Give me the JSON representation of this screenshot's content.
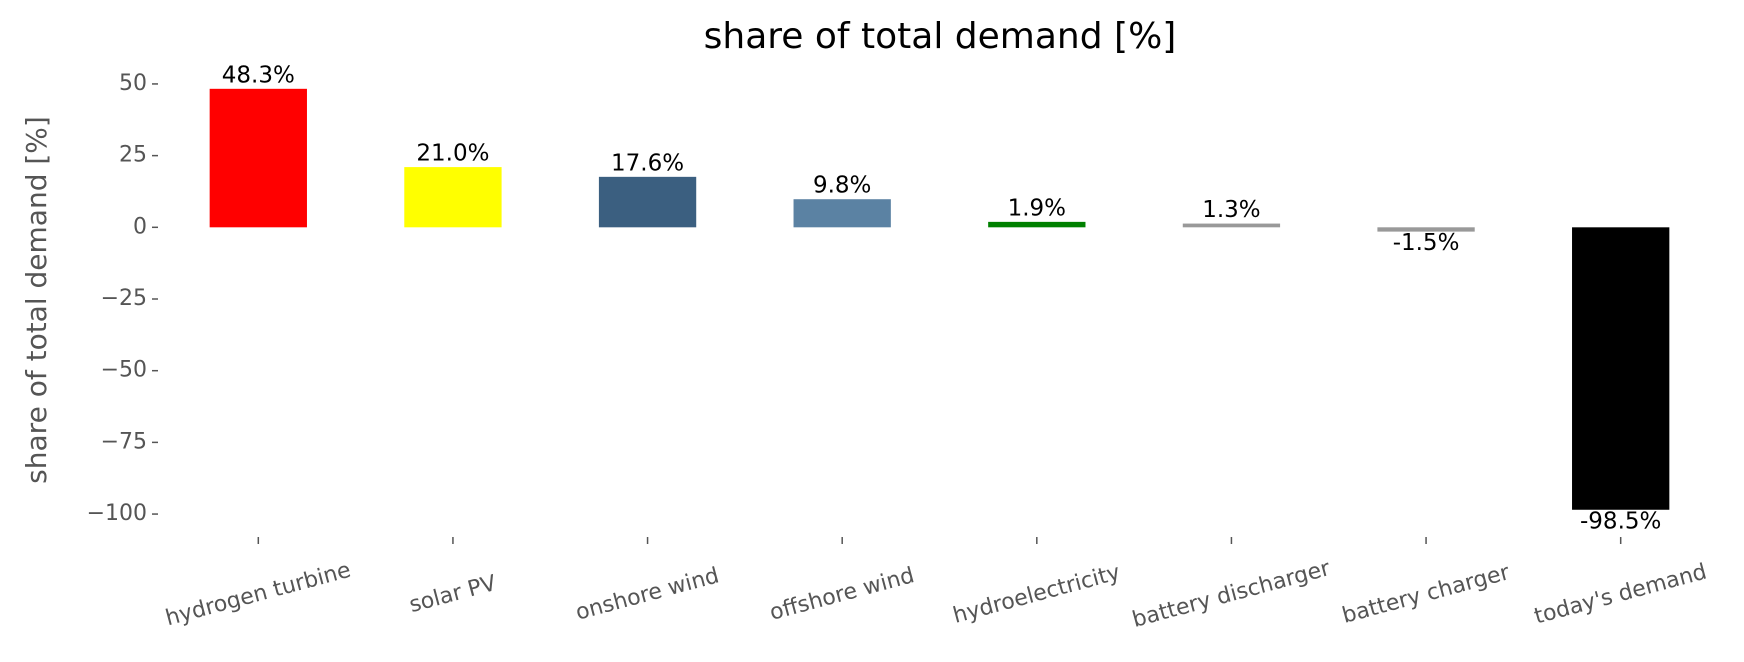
{
  "chart_data": {
    "type": "bar",
    "title": "share of total demand [%]",
    "y_label": "share of total demand [%]",
    "categories": [
      "hydrogen turbine",
      "solar PV",
      "onshore wind",
      "offshore wind",
      "hydroelectricity",
      "battery discharger",
      "battery charger",
      "today's demand"
    ],
    "values": [
      48.3,
      21.0,
      17.6,
      9.8,
      1.9,
      1.3,
      -1.5,
      -98.5
    ],
    "value_labels": [
      "48.3%",
      "21.0%",
      "17.6%",
      "9.8%",
      "1.9%",
      "1.3%",
      "-1.5%",
      "-98.5%"
    ],
    "colors": [
      "#ff0000",
      "#ffff00",
      "#3b5f80",
      "#5b82a3",
      "#008000",
      "#999999",
      "#999999",
      "#000000"
    ],
    "ylim": [
      -108,
      58
    ],
    "yticks": [
      50,
      25,
      0,
      {
        "value": -25,
        "label": "−25"
      },
      {
        "value": -50,
        "label": "−50"
      },
      {
        "value": -75,
        "label": "−75"
      },
      {
        "value": -100,
        "label": "−100"
      }
    ],
    "grid": false
  }
}
